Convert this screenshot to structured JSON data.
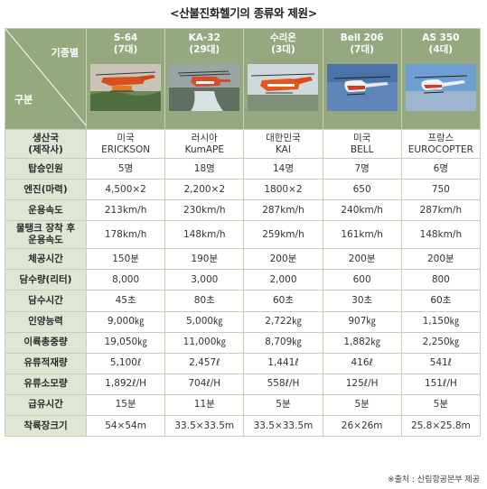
{
  "title": "<산불진화헬기의 종류와 제원>",
  "header": {
    "corner_top": "기종별",
    "corner_bottom": "구분",
    "models": [
      {
        "name": "S-64",
        "count": "(7대)"
      },
      {
        "name": "KA-32",
        "count": "(29대)"
      },
      {
        "name": "수리온",
        "count": "(3대)"
      },
      {
        "name": "Bell 206",
        "count": "(7대)"
      },
      {
        "name": "AS 350",
        "count": "(4대)"
      }
    ]
  },
  "rows": [
    {
      "label": [
        "생산국",
        "(제작사)"
      ],
      "values": [
        [
          "미국",
          "ERICKSON"
        ],
        [
          "러시아",
          "KumAPE"
        ],
        [
          "대한민국",
          "KAI"
        ],
        [
          "미국",
          "BELL"
        ],
        [
          "프랑스",
          "EUROCOPTER"
        ]
      ]
    },
    {
      "label": [
        "탑승인원"
      ],
      "values": [
        [
          "5명"
        ],
        [
          "18명"
        ],
        [
          "14명"
        ],
        [
          "7명"
        ],
        [
          "6명"
        ]
      ]
    },
    {
      "label": [
        "엔진(마력)"
      ],
      "values": [
        [
          "4,500×2"
        ],
        [
          "2,200×2"
        ],
        [
          "1800×2"
        ],
        [
          "650"
        ],
        [
          "750"
        ]
      ]
    },
    {
      "label": [
        "운용속도"
      ],
      "values": [
        [
          "213km/h"
        ],
        [
          "230km/h"
        ],
        [
          "287km/h"
        ],
        [
          "240km/h"
        ],
        [
          "287km/h"
        ]
      ]
    },
    {
      "label": [
        "물탱크 장착 후",
        "운용속도"
      ],
      "values": [
        [
          "178km/h"
        ],
        [
          "148km/h"
        ],
        [
          "259km/h"
        ],
        [
          "161km/h"
        ],
        [
          "148km/h"
        ]
      ]
    },
    {
      "label": [
        "체공시간"
      ],
      "values": [
        [
          "150분"
        ],
        [
          "190분"
        ],
        [
          "200분"
        ],
        [
          "200분"
        ],
        [
          "200분"
        ]
      ]
    },
    {
      "label": [
        "담수량(리터)"
      ],
      "values": [
        [
          "8,000"
        ],
        [
          "3,000"
        ],
        [
          "2,000"
        ],
        [
          "600"
        ],
        [
          "800"
        ]
      ]
    },
    {
      "label": [
        "담수시간"
      ],
      "values": [
        [
          "45초"
        ],
        [
          "80초"
        ],
        [
          "60초"
        ],
        [
          "30초"
        ],
        [
          "60초"
        ]
      ]
    },
    {
      "label": [
        "인양능력"
      ],
      "values": [
        [
          "9,000㎏"
        ],
        [
          "5,000㎏"
        ],
        [
          "2,722㎏"
        ],
        [
          "907㎏"
        ],
        [
          "1,150㎏"
        ]
      ]
    },
    {
      "label": [
        "이륙총중량"
      ],
      "values": [
        [
          "19,050㎏"
        ],
        [
          "11,000㎏"
        ],
        [
          "8,709㎏"
        ],
        [
          "1,882㎏"
        ],
        [
          "2,250㎏"
        ]
      ]
    },
    {
      "label": [
        "유류적재량"
      ],
      "values": [
        [
          "5,100ℓ"
        ],
        [
          "2,457ℓ"
        ],
        [
          "1,441ℓ"
        ],
        [
          "416ℓ"
        ],
        [
          "541ℓ"
        ]
      ]
    },
    {
      "label": [
        "유류소모량"
      ],
      "values": [
        [
          "1,892ℓ/H"
        ],
        [
          "704ℓ/H"
        ],
        [
          "558ℓ/H"
        ],
        [
          "125ℓ/H"
        ],
        [
          "151ℓ/H"
        ]
      ]
    },
    {
      "label": [
        "급유시간"
      ],
      "values": [
        [
          "15분"
        ],
        [
          "11분"
        ],
        [
          "5분"
        ],
        [
          "5분"
        ],
        [
          "5분"
        ]
      ]
    },
    {
      "label": [
        "착륙장크기"
      ],
      "values": [
        [
          "54×54m"
        ],
        [
          "33.5×33.5m"
        ],
        [
          "33.5×33.5m"
        ],
        [
          "26×26m"
        ],
        [
          "25.8×25.8m"
        ]
      ]
    }
  ],
  "source": "※출처 : 산림항공본부 제공",
  "photo_icons": [
    "helicopter-photo-s64",
    "helicopter-photo-ka32",
    "helicopter-photo-surion",
    "helicopter-photo-bell206",
    "helicopter-photo-as350"
  ]
}
